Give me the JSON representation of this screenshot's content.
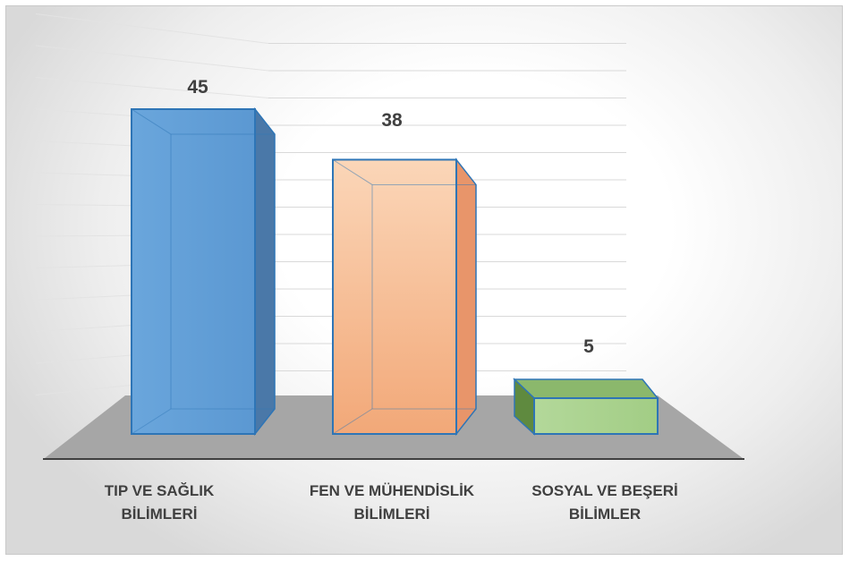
{
  "chart_data": {
    "type": "bar",
    "title": "",
    "categories": [
      [
        "TIP VE SAĞLIK",
        "BİLİMLERİ"
      ],
      [
        "FEN VE MÜHENDİSLİK",
        "BİLİMLERİ"
      ],
      [
        "SOSYAL VE BEŞERİ",
        "BİLİMLER"
      ]
    ],
    "values": [
      45,
      38,
      5
    ],
    "data_labels": [
      "45",
      "38",
      "5"
    ],
    "ylim": [
      0,
      45
    ],
    "gridlines": true,
    "legend": "none",
    "style": "3d-box",
    "colors": [
      "#5b9bd5",
      "#f4b183",
      "#a9d18e"
    ]
  }
}
